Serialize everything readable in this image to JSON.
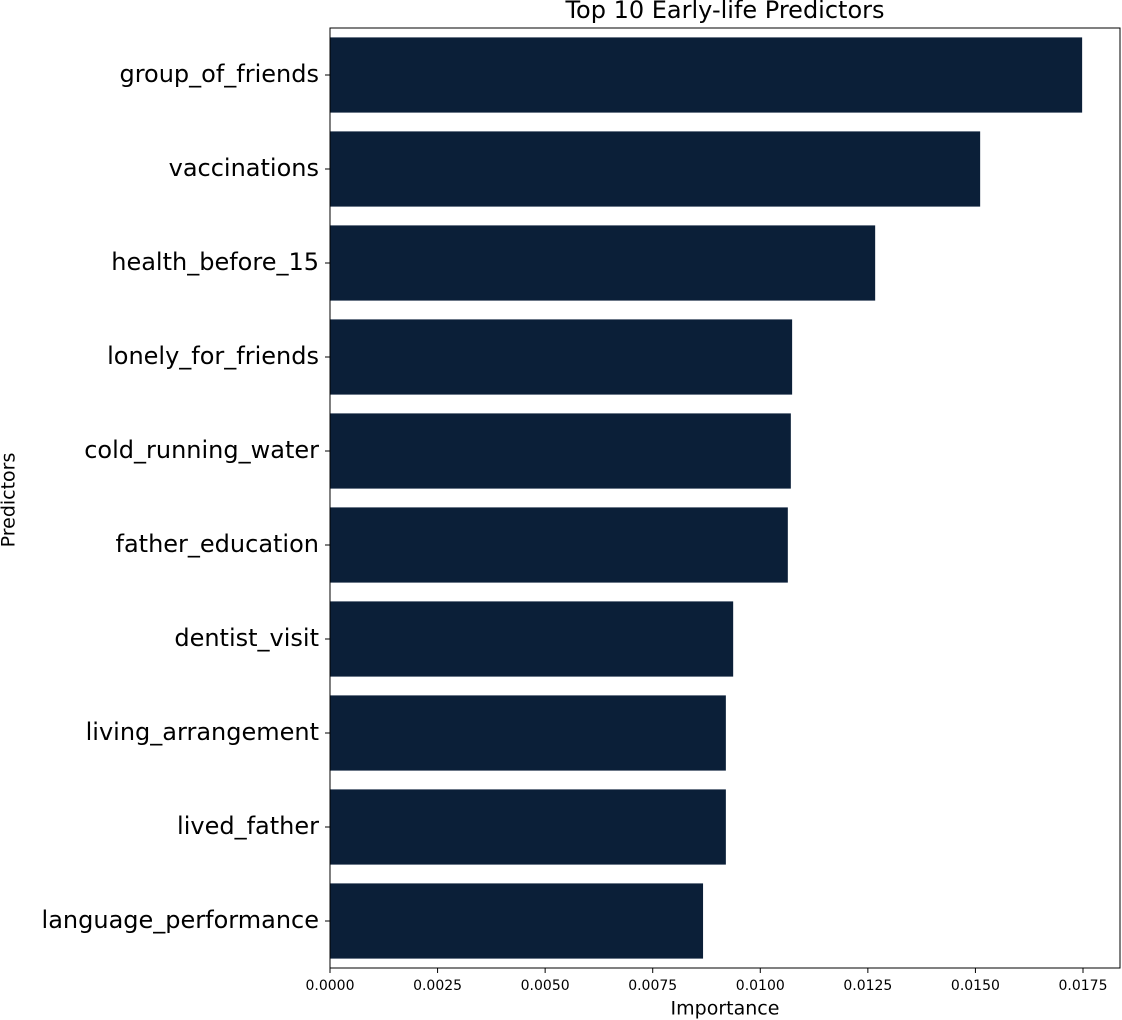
{
  "chart_data": {
    "type": "barh",
    "title": "Top 10 Early-life Predictors",
    "x_label": "Importance",
    "y_label": "Predictors",
    "categories": [
      "group_of_friends",
      "vaccinations",
      "health_before_15",
      "lonely_for_friends",
      "cold_running_water",
      "father_education",
      "dentist_visit",
      "living_arrangement",
      "lived_father",
      "language_performance"
    ],
    "values": [
      0.01748,
      0.01511,
      0.01267,
      0.01074,
      0.01071,
      0.01064,
      0.00937,
      0.0092,
      0.0092,
      0.00867
    ],
    "color": "#0b1f38",
    "xlim": [
      0,
      0.01836
    ],
    "xticks": [
      {
        "value": 0,
        "label": "0.0000"
      },
      {
        "value": 0.0025,
        "label": "0.0025"
      },
      {
        "value": 0.005,
        "label": "0.0050"
      },
      {
        "value": 0.0075,
        "label": "0.0075"
      },
      {
        "value": 0.01,
        "label": "0.0100"
      },
      {
        "value": 0.0125,
        "label": "0.0125"
      },
      {
        "value": 0.015,
        "label": "0.0150"
      },
      {
        "value": 0.0175,
        "label": "0.0175"
      }
    ],
    "grid": false
  }
}
